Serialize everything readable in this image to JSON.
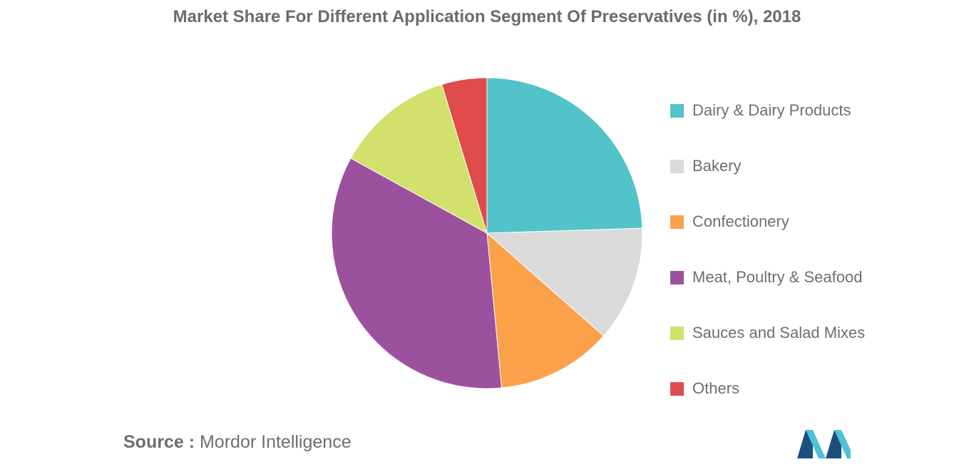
{
  "chart_data": {
    "type": "pie",
    "title": "Market Share For Different Application Segment Of Preservatives (in %), 2018",
    "categories": [
      "Dairy & Dairy Products",
      "Bakery",
      "Confectionery",
      "Meat, Poultry & Seafood",
      "Sauces and Salad Mixes",
      "Others"
    ],
    "values": [
      24.5,
      12,
      12,
      34.5,
      12.3,
      4.7
    ],
    "colors": [
      "#52c3c9",
      "#dadada",
      "#fba14a",
      "#9c519f",
      "#d1e16b",
      "#e04b4b"
    ],
    "legend_position": "right",
    "start_angle": "top, clockwise"
  },
  "source": {
    "label": "Source :",
    "text": "Mordor Intelligence"
  },
  "logo": {
    "name": "mordor-intelligence-logo",
    "colors": [
      "#1d4f7c",
      "#4fc3d6"
    ]
  }
}
